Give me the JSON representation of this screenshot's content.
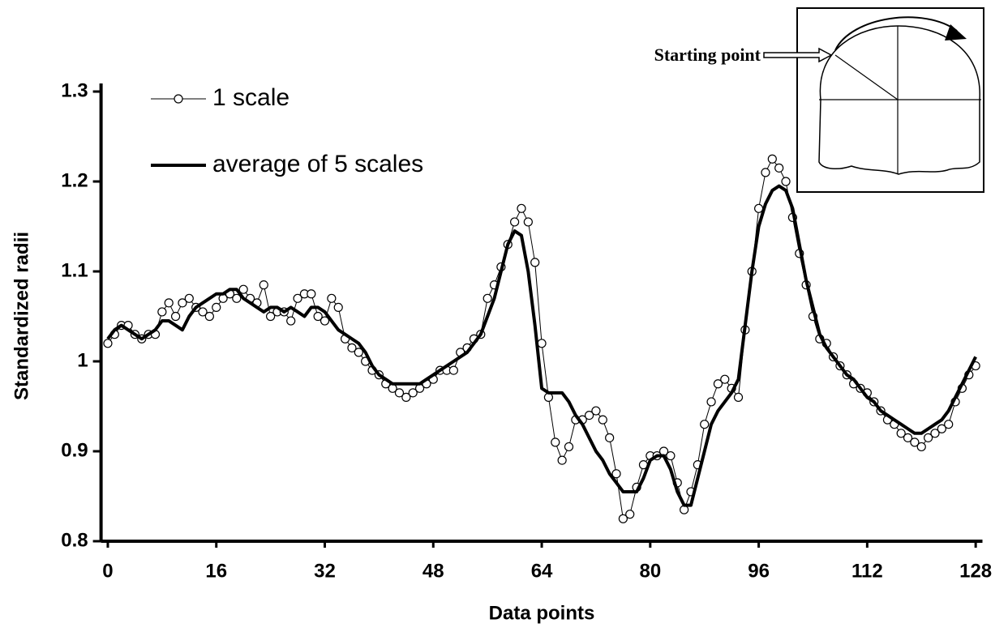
{
  "chart_data": {
    "type": "line",
    "xlabel": "Data points",
    "ylabel": "Standardized radii",
    "annotation": "Starting point",
    "x": [
      0,
      1,
      2,
      3,
      4,
      5,
      6,
      7,
      8,
      9,
      10,
      11,
      12,
      13,
      14,
      15,
      16,
      17,
      18,
      19,
      20,
      21,
      22,
      23,
      24,
      25,
      26,
      27,
      28,
      29,
      30,
      31,
      32,
      33,
      34,
      35,
      36,
      37,
      38,
      39,
      40,
      41,
      42,
      43,
      44,
      45,
      46,
      47,
      48,
      49,
      50,
      51,
      52,
      53,
      54,
      55,
      56,
      57,
      58,
      59,
      60,
      61,
      62,
      63,
      64,
      65,
      66,
      67,
      68,
      69,
      70,
      71,
      72,
      73,
      74,
      75,
      76,
      77,
      78,
      79,
      80,
      81,
      82,
      83,
      84,
      85,
      86,
      87,
      88,
      89,
      90,
      91,
      92,
      93,
      94,
      95,
      96,
      97,
      98,
      99,
      100,
      101,
      102,
      103,
      104,
      105,
      106,
      107,
      108,
      109,
      110,
      111,
      112,
      113,
      114,
      115,
      116,
      117,
      118,
      119,
      120,
      121,
      122,
      123,
      124,
      125,
      126,
      127,
      128
    ],
    "series": [
      {
        "name": "1 scale",
        "color": "#000000",
        "marker": "circle",
        "width": 1,
        "values": [
          1.02,
          1.03,
          1.04,
          1.04,
          1.03,
          1.025,
          1.03,
          1.03,
          1.055,
          1.065,
          1.05,
          1.065,
          1.07,
          1.06,
          1.055,
          1.05,
          1.06,
          1.07,
          1.075,
          1.07,
          1.08,
          1.07,
          1.065,
          1.085,
          1.05,
          1.055,
          1.055,
          1.045,
          1.07,
          1.075,
          1.075,
          1.05,
          1.045,
          1.07,
          1.06,
          1.025,
          1.015,
          1.01,
          1.0,
          0.99,
          0.985,
          0.975,
          0.97,
          0.965,
          0.96,
          0.965,
          0.97,
          0.975,
          0.98,
          0.99,
          0.99,
          0.99,
          1.01,
          1.015,
          1.025,
          1.03,
          1.07,
          1.085,
          1.105,
          1.13,
          1.155,
          1.17,
          1.155,
          1.11,
          1.02,
          0.96,
          0.91,
          0.89,
          0.905,
          0.935,
          0.935,
          0.94,
          0.945,
          0.935,
          0.915,
          0.875,
          0.825,
          0.83,
          0.86,
          0.885,
          0.895,
          0.895,
          0.9,
          0.895,
          0.865,
          0.835,
          0.855,
          0.885,
          0.93,
          0.955,
          0.975,
          0.98,
          0.97,
          0.96,
          1.035,
          1.1,
          1.17,
          1.21,
          1.225,
          1.215,
          1.2,
          1.16,
          1.12,
          1.085,
          1.05,
          1.025,
          1.02,
          1.005,
          0.995,
          0.985,
          0.975,
          0.97,
          0.965,
          0.955,
          0.945,
          0.935,
          0.93,
          0.92,
          0.915,
          0.91,
          0.905,
          0.915,
          0.92,
          0.925,
          0.93,
          0.955,
          0.97,
          0.985,
          0.995
        ]
      },
      {
        "name": "average of 5 scales",
        "color": "#000000",
        "width": 4,
        "values": [
          1.025,
          1.035,
          1.04,
          1.035,
          1.03,
          1.025,
          1.03,
          1.035,
          1.045,
          1.045,
          1.04,
          1.035,
          1.05,
          1.06,
          1.065,
          1.07,
          1.075,
          1.075,
          1.08,
          1.08,
          1.07,
          1.065,
          1.06,
          1.055,
          1.06,
          1.06,
          1.055,
          1.06,
          1.055,
          1.05,
          1.06,
          1.06,
          1.055,
          1.045,
          1.035,
          1.03,
          1.025,
          1.02,
          1.01,
          0.995,
          0.985,
          0.98,
          0.975,
          0.975,
          0.975,
          0.975,
          0.975,
          0.98,
          0.985,
          0.99,
          0.995,
          1.0,
          1.005,
          1.01,
          1.02,
          1.03,
          1.05,
          1.07,
          1.1,
          1.13,
          1.145,
          1.14,
          1.1,
          1.04,
          0.97,
          0.965,
          0.965,
          0.965,
          0.955,
          0.94,
          0.93,
          0.915,
          0.9,
          0.89,
          0.875,
          0.865,
          0.855,
          0.855,
          0.855,
          0.87,
          0.89,
          0.895,
          0.895,
          0.88,
          0.855,
          0.84,
          0.84,
          0.87,
          0.9,
          0.93,
          0.945,
          0.955,
          0.965,
          0.98,
          1.04,
          1.1,
          1.15,
          1.175,
          1.19,
          1.195,
          1.19,
          1.17,
          1.13,
          1.09,
          1.06,
          1.03,
          1.015,
          1.005,
          0.995,
          0.985,
          0.98,
          0.97,
          0.96,
          0.955,
          0.945,
          0.94,
          0.935,
          0.93,
          0.925,
          0.92,
          0.92,
          0.925,
          0.93,
          0.935,
          0.945,
          0.96,
          0.975,
          0.99,
          1.005
        ]
      }
    ],
    "xlim": [
      -1,
      129
    ],
    "xticks": [
      0,
      16,
      32,
      48,
      64,
      80,
      96,
      112,
      128
    ],
    "ylim": [
      0.8,
      1.3
    ],
    "yticks": [
      0.8,
      0.9,
      1,
      1.1,
      1.2,
      1.3
    ]
  }
}
